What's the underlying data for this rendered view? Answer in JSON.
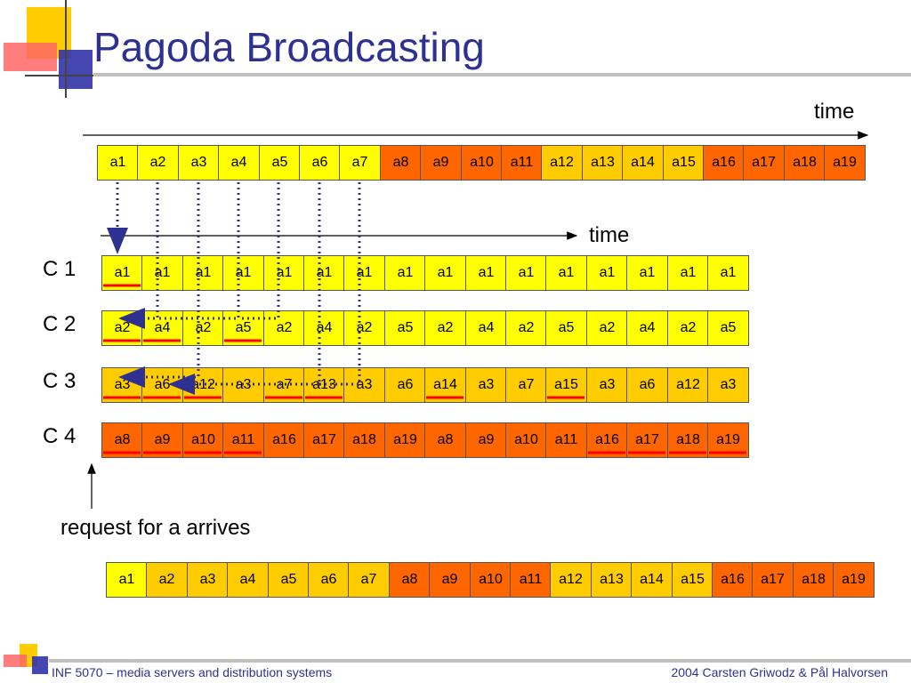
{
  "title": "Pagoda Broadcasting",
  "colors": {
    "light": "#ffff00",
    "mid": "#ffcc00",
    "dark": "#ff6600",
    "title": "#2e3192",
    "underline": "#ff0000",
    "dotted": "#2e3192"
  },
  "top_time_label": "time",
  "mid_time_label": "time",
  "top_segments": [
    {
      "t": "a1",
      "c": "light"
    },
    {
      "t": "a2",
      "c": "light"
    },
    {
      "t": "a3",
      "c": "light"
    },
    {
      "t": "a4",
      "c": "light"
    },
    {
      "t": "a5",
      "c": "light"
    },
    {
      "t": "a6",
      "c": "light"
    },
    {
      "t": "a7",
      "c": "light"
    },
    {
      "t": "a8",
      "c": "dark"
    },
    {
      "t": "a9",
      "c": "dark"
    },
    {
      "t": "a10",
      "c": "dark"
    },
    {
      "t": "a11",
      "c": "dark"
    },
    {
      "t": "a12",
      "c": "mid"
    },
    {
      "t": "a13",
      "c": "mid"
    },
    {
      "t": "a14",
      "c": "mid"
    },
    {
      "t": "a15",
      "c": "mid"
    },
    {
      "t": "a16",
      "c": "dark"
    },
    {
      "t": "a17",
      "c": "dark"
    },
    {
      "t": "a18",
      "c": "dark"
    },
    {
      "t": "a19",
      "c": "dark"
    }
  ],
  "channels": [
    {
      "label": "C 1",
      "color": "light",
      "cells": [
        "a1",
        "a1",
        "a1",
        "a1",
        "a1",
        "a1",
        "a1",
        "a1",
        "a1",
        "a1",
        "a1",
        "a1",
        "a1",
        "a1",
        "a1",
        "a1"
      ],
      "underlined": [
        0
      ]
    },
    {
      "label": "C 2",
      "color": "light",
      "cells": [
        "a2",
        "a4",
        "a2",
        "a5",
        "a2",
        "a4",
        "a2",
        "a5",
        "a2",
        "a4",
        "a2",
        "a5",
        "a2",
        "a4",
        "a2",
        "a5"
      ],
      "underlined": [
        0,
        1,
        3
      ]
    },
    {
      "label": "C 3",
      "color": "mid",
      "cells": [
        "a3",
        "a6",
        "a12",
        "a3",
        "a7",
        "a13",
        "a3",
        "a6",
        "a14",
        "a3",
        "a7",
        "a15",
        "a3",
        "a6",
        "a12",
        "a3"
      ],
      "underlined": [
        0,
        1,
        2,
        4,
        5,
        8,
        11
      ]
    },
    {
      "label": "C 4",
      "color": "dark",
      "cells": [
        "a8",
        "a9",
        "a10",
        "a11",
        "a16",
        "a17",
        "a18",
        "a19",
        "a8",
        "a9",
        "a10",
        "a11",
        "a16",
        "a17",
        "a18",
        "a19"
      ],
      "underlined": [
        0,
        1,
        2,
        3,
        12,
        13,
        14,
        15
      ]
    }
  ],
  "request_label": "request for a arrives",
  "bottom_segments": [
    {
      "t": "a1",
      "c": "light"
    },
    {
      "t": "a2",
      "c": "mid"
    },
    {
      "t": "a3",
      "c": "mid"
    },
    {
      "t": "a4",
      "c": "mid"
    },
    {
      "t": "a5",
      "c": "mid"
    },
    {
      "t": "a6",
      "c": "mid"
    },
    {
      "t": "a7",
      "c": "mid"
    },
    {
      "t": "a8",
      "c": "dark"
    },
    {
      "t": "a9",
      "c": "dark"
    },
    {
      "t": "a10",
      "c": "dark"
    },
    {
      "t": "a11",
      "c": "dark"
    },
    {
      "t": "a12",
      "c": "mid"
    },
    {
      "t": "a13",
      "c": "mid"
    },
    {
      "t": "a14",
      "c": "mid"
    },
    {
      "t": "a15",
      "c": "mid"
    },
    {
      "t": "a16",
      "c": "dark"
    },
    {
      "t": "a17",
      "c": "dark"
    },
    {
      "t": "a18",
      "c": "dark"
    },
    {
      "t": "a19",
      "c": "dark"
    }
  ],
  "footer": {
    "left": "INF 5070 – media servers and distribution systems",
    "right": "2004  Carsten Griwodz & Pål Halvorsen"
  }
}
